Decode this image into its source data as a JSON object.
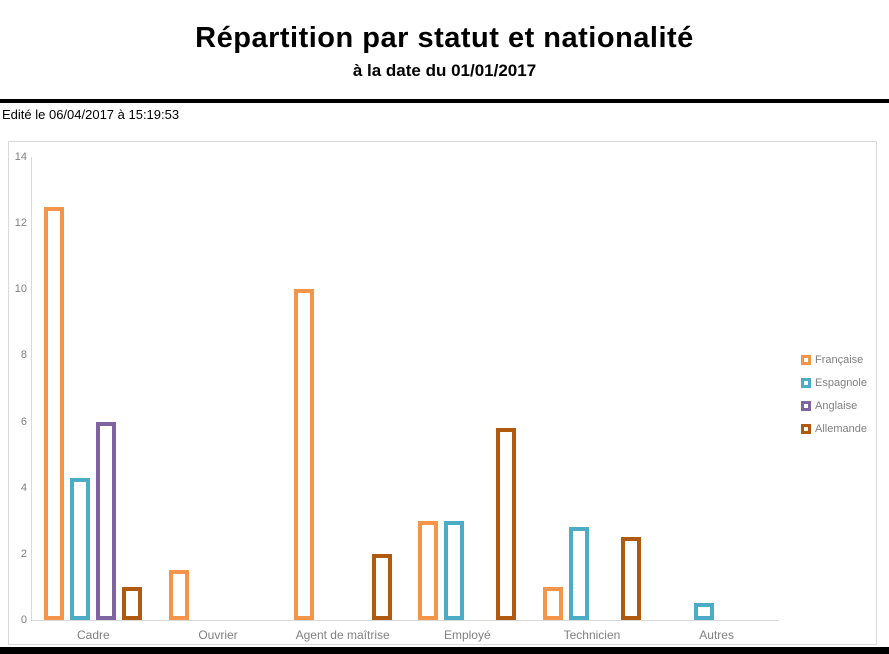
{
  "header": {
    "title": "Répartition par statut et nationalité",
    "subtitle": "à la date du 01/01/2017",
    "edited_label": "Edité le 06/04/2017 à 15:19:53"
  },
  "chart_data": {
    "type": "bar",
    "title": "Répartition par statut et nationalité",
    "subtitle": "à la date du 01/01/2017",
    "bar_style": "outlined",
    "grid": false,
    "legend_position": "right",
    "categories": [
      "Cadre",
      "Ouvrier",
      "Agent de maîtrise",
      "Employé",
      "Technicien",
      "Autres"
    ],
    "series": [
      {
        "name": "Française",
        "color": "#F5954A",
        "values": [
          12.5,
          1.5,
          10,
          3,
          1,
          0
        ]
      },
      {
        "name": "Espagnole",
        "color": "#4BACC6",
        "values": [
          4.3,
          0,
          0,
          3,
          2.8,
          0.5
        ]
      },
      {
        "name": "Anglaise",
        "color": "#8064A2",
        "values": [
          6,
          0,
          0,
          0,
          0,
          0
        ]
      },
      {
        "name": "Allemande",
        "color": "#B05A10",
        "values": [
          1,
          0,
          2,
          5.8,
          2.5,
          0
        ]
      }
    ],
    "y_axis": {
      "min": 0,
      "max": 14,
      "tick_step": 2,
      "ticks": [
        0,
        2,
        4,
        6,
        8,
        10,
        12,
        14
      ]
    },
    "axis_color": "#d9d9d9",
    "label_color": "#808080"
  }
}
